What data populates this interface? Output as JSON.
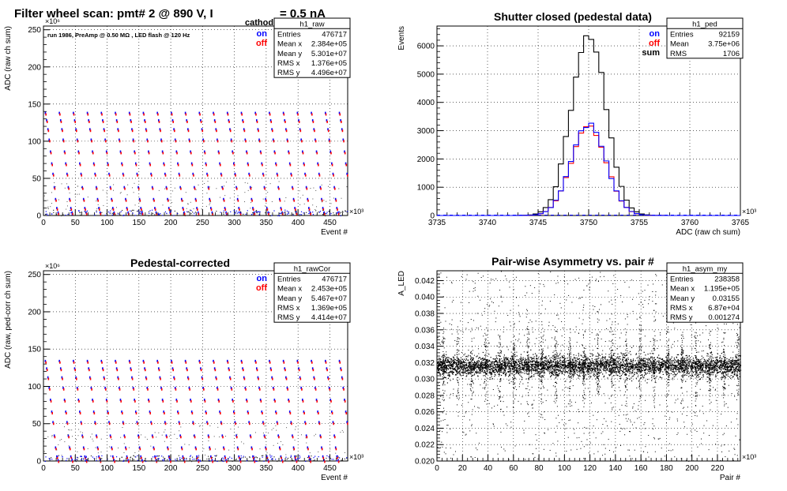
{
  "window": {
    "title_main": "Filter wheel scan: pmt#   2 @   890 V, I",
    "title_sub": "cathode",
    "title_tail": "= 0.5 nA"
  },
  "colors": {
    "on": "#0000ff",
    "off": "#ff0000",
    "sum": "#000000"
  },
  "chart_data": [
    {
      "id": "raw",
      "type": "scatter",
      "title": "",
      "annotation": "run 1986, PreAmp @ 0.50 MΩ , LED flash @  120 Hz",
      "xlabel": "Event #",
      "ylabel": "ADC (raw ch sum)",
      "x_exponent": "×10³",
      "y_exponent": "×10⁶",
      "xlim": [
        0,
        478
      ],
      "ylim": [
        0,
        255
      ],
      "xticks": [
        0,
        50,
        100,
        150,
        200,
        250,
        300,
        350,
        400,
        450
      ],
      "yticks": [
        0,
        50,
        100,
        150,
        200,
        250
      ],
      "grid": true,
      "legend": [
        {
          "name": "on",
          "color": "#0000ff"
        },
        {
          "name": "off",
          "color": "#ff0000"
        }
      ],
      "stats": {
        "name": "h1_raw",
        "rows": [
          [
            "Entries",
            "476717"
          ],
          [
            "Mean x",
            "2.384e+05"
          ],
          [
            "Mean y",
            "5.301e+07"
          ],
          [
            "RMS x",
            "1.376e+05"
          ],
          [
            "RMS y",
            "4.496e+07"
          ]
        ]
      },
      "levels": [
        138,
        128,
        116,
        102,
        86,
        70,
        56,
        38,
        22,
        10,
        4
      ],
      "step_period": 22
    },
    {
      "id": "ped",
      "type": "histogram",
      "title": "Shutter closed (pedestal data)",
      "xlabel": "ADC (raw ch sum)",
      "ylabel": "Events",
      "x_exponent": "×10³",
      "xlim": [
        3735,
        3765
      ],
      "ylim": [
        0,
        6700
      ],
      "xticks": [
        3735,
        3740,
        3745,
        3750,
        3755,
        3760,
        3765
      ],
      "yticks": [
        0,
        1000,
        2000,
        3000,
        4000,
        5000,
        6000
      ],
      "grid": true,
      "legend": [
        {
          "name": "on",
          "color": "#0000ff"
        },
        {
          "name": "off",
          "color": "#ff0000"
        },
        {
          "name": "sum",
          "color": "#000000"
        }
      ],
      "stats": {
        "name": "h1_ped",
        "rows": [
          [
            "Entries",
            "92159"
          ],
          [
            "Mean",
            "3.75e+06"
          ],
          [
            "RMS",
            "1706"
          ]
        ]
      },
      "bin_width": 0.5,
      "mean": 3750,
      "sigma": 1.7,
      "peak_sum": 6480,
      "peak_on": 3240,
      "peak_off": 3200
    },
    {
      "id": "rawcor",
      "type": "scatter",
      "title": "Pedestal-corrected",
      "xlabel": "Event #",
      "ylabel": "ADC (raw, ped-corr ch sum)",
      "x_exponent": "×10³",
      "y_exponent": "×10⁶",
      "xlim": [
        0,
        478
      ],
      "ylim": [
        0,
        255
      ],
      "xticks": [
        0,
        50,
        100,
        150,
        200,
        250,
        300,
        350,
        400,
        450
      ],
      "yticks": [
        0,
        50,
        100,
        150,
        200,
        250
      ],
      "grid": true,
      "legend": [
        {
          "name": "on",
          "color": "#0000ff"
        },
        {
          "name": "off",
          "color": "#ff0000"
        }
      ],
      "stats": {
        "name": "h1_rawCor",
        "rows": [
          [
            "Entries",
            "476717"
          ],
          [
            "Mean x",
            "2.453e+05"
          ],
          [
            "Mean y",
            "5.467e+07"
          ],
          [
            "RMS x",
            "1.369e+05"
          ],
          [
            "RMS y",
            "4.414e+07"
          ]
        ]
      },
      "levels": [
        134,
        124,
        112,
        98,
        82,
        66,
        52,
        34,
        18,
        6,
        1
      ],
      "step_period": 22
    },
    {
      "id": "asym",
      "type": "scatter",
      "title": "Pair-wise Asymmetry vs. pair #",
      "xlabel": "Pair #",
      "ylabel": "A_LED",
      "x_exponent": "×10³",
      "xlim": [
        0,
        238
      ],
      "ylim": [
        0.02,
        0.0432
      ],
      "xticks": [
        0,
        20,
        40,
        60,
        80,
        100,
        120,
        140,
        160,
        180,
        200,
        220
      ],
      "yticks": [
        0.02,
        0.022,
        0.024,
        0.026,
        0.028,
        0.03,
        0.032,
        0.034,
        0.036,
        0.038,
        0.04,
        0.042
      ],
      "grid": true,
      "stats": {
        "name": "h1_asym_my",
        "rows": [
          [
            "Entries",
            "238358"
          ],
          [
            "Mean x",
            "1.195e+05"
          ],
          [
            "Mean y",
            "0.03155"
          ],
          [
            "RMS x",
            "6.87e+04"
          ],
          [
            "RMS y",
            "0.001274"
          ]
        ]
      },
      "band_center": 0.0316,
      "band_halfwidth": 0.0011,
      "spike_period": 11
    }
  ]
}
